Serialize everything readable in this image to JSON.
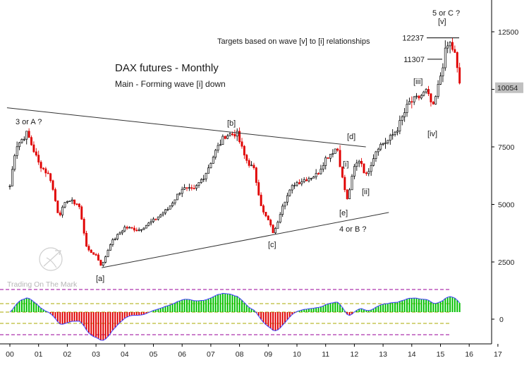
{
  "chart_data": {
    "type": "candlestick",
    "title": "DAX futures - Monthly",
    "subtitle": "Main - Forming wave [i] down",
    "note": "Targets based on wave [v] to [i] relationships",
    "watermark": "Trading On The Mark",
    "price_axis": {
      "ticks": [
        2500,
        5000,
        7500,
        10000,
        12500
      ],
      "current_price": 10054,
      "current_label": "10054"
    },
    "oscillator_axis": {
      "ticks": [
        0
      ],
      "tick_labels": [
        "0"
      ]
    },
    "x_axis": {
      "tick_labels": [
        "00",
        "01",
        "02",
        "03",
        "04",
        "05",
        "06",
        "07",
        "08",
        "09",
        "10",
        "11",
        "12",
        "13",
        "14",
        "15",
        "16",
        "17"
      ]
    },
    "target_levels": [
      {
        "label": "12237",
        "value": 12237
      },
      {
        "label": "11307",
        "value": 11307
      }
    ],
    "wave_labels": [
      {
        "text": "3 or A ?"
      },
      {
        "text": "[a]"
      },
      {
        "text": "[b]"
      },
      {
        "text": "[c]"
      },
      {
        "text": "[d]"
      },
      {
        "text": "[e]"
      },
      {
        "text": "4 or B ?"
      },
      {
        "text": "[i]"
      },
      {
        "text": "[ii]"
      },
      {
        "text": "[iii]"
      },
      {
        "text": "[iv]"
      },
      {
        "text": "[v]"
      },
      {
        "text": "5 or C ?"
      }
    ],
    "anchors": [
      {
        "t": 2000.0,
        "p": 5800
      },
      {
        "t": 2000.2,
        "p": 7500
      },
      {
        "t": 2000.6,
        "p": 8100
      },
      {
        "t": 2001.0,
        "p": 6800
      },
      {
        "t": 2001.4,
        "p": 6200
      },
      {
        "t": 2001.7,
        "p": 4500
      },
      {
        "t": 2002.0,
        "p": 5200
      },
      {
        "t": 2002.4,
        "p": 5000
      },
      {
        "t": 2002.7,
        "p": 3000
      },
      {
        "t": 2003.0,
        "p": 2800
      },
      {
        "t": 2003.2,
        "p": 2300
      },
      {
        "t": 2003.5,
        "p": 3300
      },
      {
        "t": 2004.0,
        "p": 4000
      },
      {
        "t": 2004.5,
        "p": 3900
      },
      {
        "t": 2005.0,
        "p": 4300
      },
      {
        "t": 2005.5,
        "p": 4800
      },
      {
        "t": 2006.0,
        "p": 5700
      },
      {
        "t": 2006.4,
        "p": 5600
      },
      {
        "t": 2006.8,
        "p": 6300
      },
      {
        "t": 2007.2,
        "p": 7400
      },
      {
        "t": 2007.5,
        "p": 8000
      },
      {
        "t": 2007.9,
        "p": 8100
      },
      {
        "t": 2008.2,
        "p": 7000
      },
      {
        "t": 2008.5,
        "p": 6500
      },
      {
        "t": 2008.8,
        "p": 4700
      },
      {
        "t": 2009.0,
        "p": 4300
      },
      {
        "t": 2009.2,
        "p": 3700
      },
      {
        "t": 2009.5,
        "p": 5000
      },
      {
        "t": 2009.9,
        "p": 5900
      },
      {
        "t": 2010.3,
        "p": 6100
      },
      {
        "t": 2010.7,
        "p": 6300
      },
      {
        "t": 2011.0,
        "p": 7000
      },
      {
        "t": 2011.4,
        "p": 7500
      },
      {
        "t": 2011.6,
        "p": 6000
      },
      {
        "t": 2011.75,
        "p": 5200
      },
      {
        "t": 2012.0,
        "p": 6600
      },
      {
        "t": 2012.2,
        "p": 7000
      },
      {
        "t": 2012.4,
        "p": 6200
      },
      {
        "t": 2012.8,
        "p": 7500
      },
      {
        "t": 2013.2,
        "p": 7800
      },
      {
        "t": 2013.5,
        "p": 8300
      },
      {
        "t": 2013.9,
        "p": 9400
      },
      {
        "t": 2014.2,
        "p": 9600
      },
      {
        "t": 2014.5,
        "p": 9900
      },
      {
        "t": 2014.75,
        "p": 9200
      },
      {
        "t": 2014.9,
        "p": 10000
      },
      {
        "t": 2015.2,
        "p": 11800
      },
      {
        "t": 2015.35,
        "p": 12000
      },
      {
        "t": 2015.5,
        "p": 11500
      },
      {
        "t": 2015.6,
        "p": 10700
      },
      {
        "t": 2015.7,
        "p": 10054
      }
    ],
    "trendlines": [
      {
        "from": {
          "t": 1999.9,
          "p": 9200
        },
        "to": {
          "t": 2012.4,
          "p": 7500
        }
      },
      {
        "from": {
          "t": 2003.2,
          "p": 2250
        },
        "to": {
          "t": 2013.2,
          "p": 4650
        }
      }
    ],
    "colors": {
      "up": "#000000",
      "down": "#e00000",
      "osc_positive": "#00c000",
      "osc_negative": "#e00000",
      "osc_line": "#4040ff",
      "level_purple": "#990099",
      "level_olive": "#aaaa00",
      "label_box": "#c0c0c0"
    }
  }
}
